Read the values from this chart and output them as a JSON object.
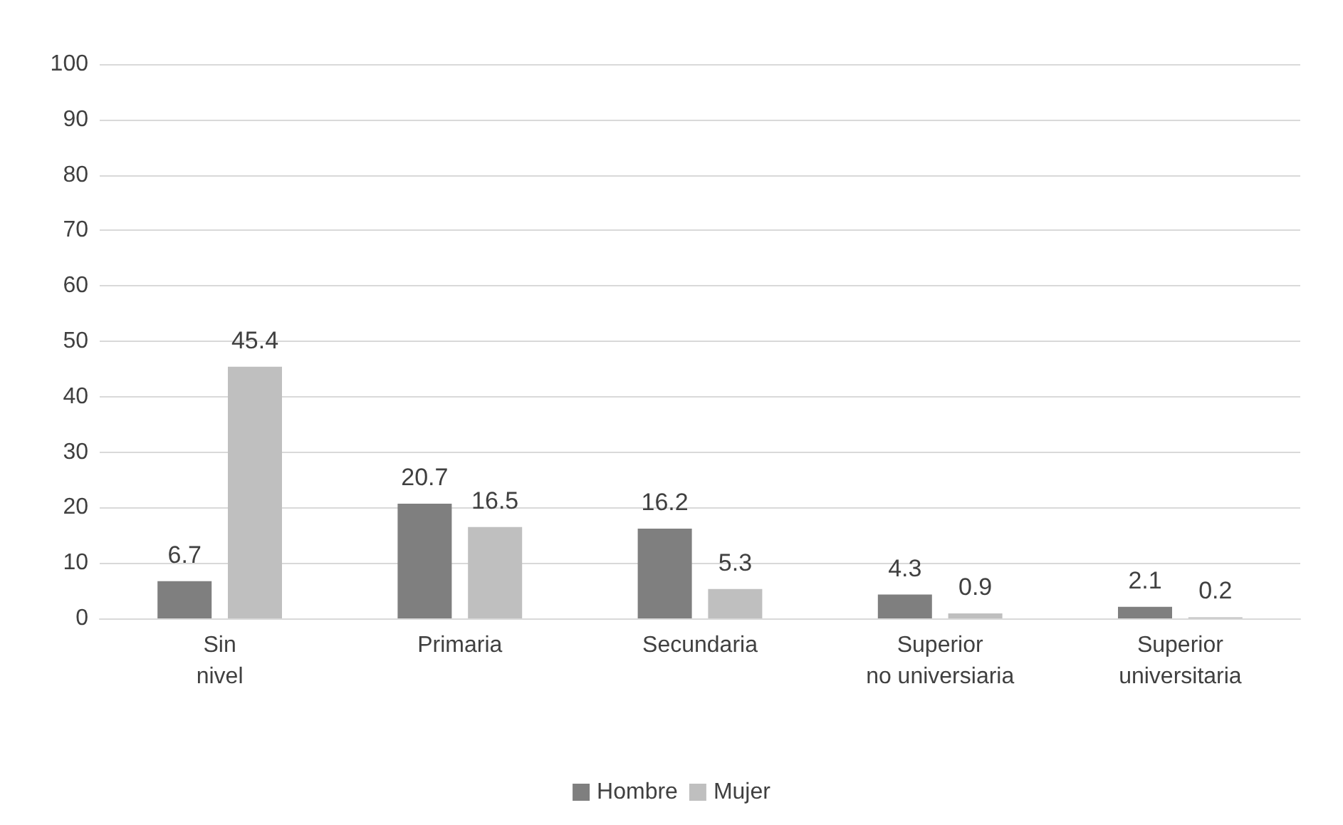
{
  "chart_data": {
    "type": "bar",
    "categories": [
      "Sin nivel",
      "Primaria",
      "Secundaria",
      "Superior no universiaria",
      "Superior universitaria"
    ],
    "series": [
      {
        "name": "Hombre",
        "color": "#7f7f7f",
        "values": [
          6.7,
          20.7,
          16.2,
          4.3,
          2.1
        ]
      },
      {
        "name": "Mujer",
        "color": "#bfbfbf",
        "values": [
          45.4,
          16.5,
          5.3,
          0.9,
          0.2
        ]
      }
    ],
    "ylim": [
      0,
      100
    ],
    "yticks": [
      0,
      10,
      20,
      30,
      40,
      50,
      60,
      70,
      80,
      90,
      100
    ],
    "grid": "y",
    "legend": "bottom",
    "data_labels": true
  }
}
